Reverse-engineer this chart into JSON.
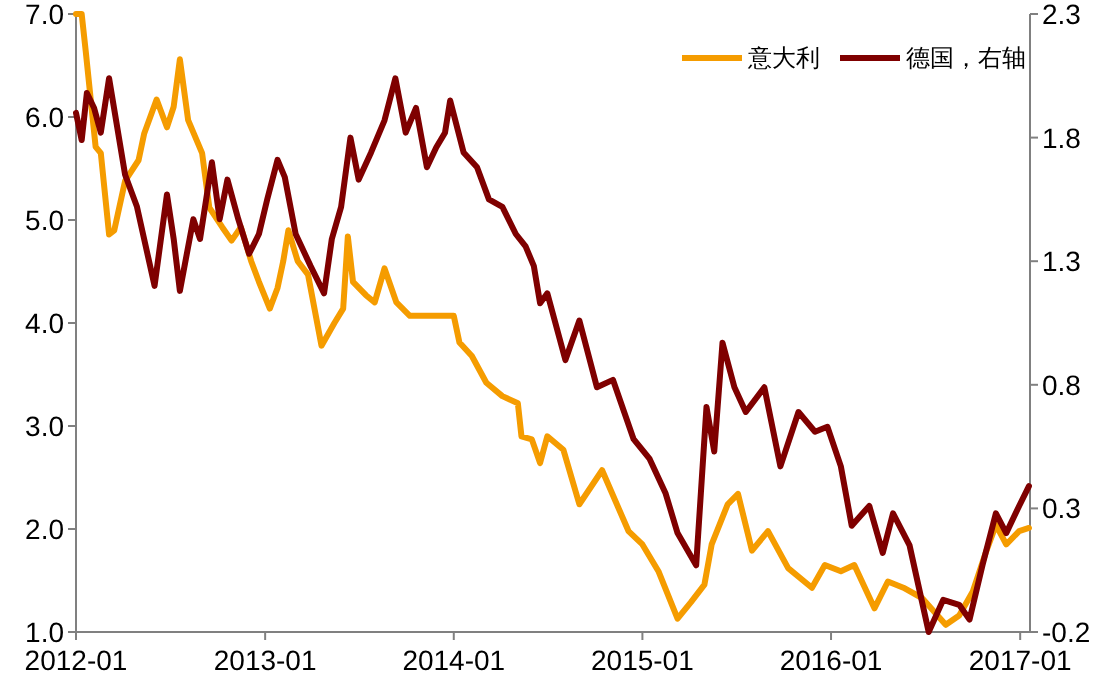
{
  "chart_data": {
    "type": "line",
    "legend": "top right",
    "grid": false,
    "xlim": [
      "2012-01-01",
      "2017-01-20"
    ],
    "xticks": [
      "2012-01",
      "2013-01",
      "2014-01",
      "2015-01",
      "2016-01",
      "2017-01"
    ],
    "ylim": [
      1,
      7
    ],
    "yticks": [
      {
        "value": 1,
        "label": "1.0"
      },
      {
        "value": 2,
        "label": "2.0"
      },
      {
        "value": 3,
        "label": "3.0"
      },
      {
        "value": 4,
        "label": "4.0"
      },
      {
        "value": 5,
        "label": "5.0"
      },
      {
        "value": 6,
        "label": "6.0"
      },
      {
        "value": 7,
        "label": "7.0"
      }
    ],
    "y2lim": [
      -0.2,
      2.3
    ],
    "y2ticks": [
      -0.2,
      0.3,
      0.8,
      1.3,
      1.8,
      2.3
    ],
    "series": [
      {
        "name": "意大利",
        "color": "#f59c00",
        "axis": "y",
        "x": [
          "2012-01-01",
          "2012-01-12",
          "2012-01-20",
          "2012-02-08",
          "2012-02-18",
          "2012-03-05",
          "2012-03-15",
          "2012-04-05",
          "2012-05-01",
          "2012-05-12",
          "2012-06-05",
          "2012-06-25",
          "2012-07-08",
          "2012-07-20",
          "2012-08-05",
          "2012-09-01",
          "2012-09-15",
          "2012-10-10",
          "2012-10-28",
          "2012-11-15",
          "2012-12-05",
          "2012-12-20",
          "2013-01-10",
          "2013-01-25",
          "2013-02-05",
          "2013-02-15",
          "2013-03-05",
          "2013-03-25",
          "2013-04-20",
          "2013-05-15",
          "2013-06-01",
          "2013-06-10",
          "2013-06-20",
          "2013-07-15",
          "2013-08-01",
          "2013-08-20",
          "2013-09-12",
          "2013-10-08",
          "2013-11-01",
          "2013-12-10",
          "2014-01-01",
          "2014-01-12",
          "2014-02-05",
          "2014-03-05",
          "2014-04-05",
          "2014-05-05",
          "2014-05-12",
          "2014-06-01",
          "2014-06-17",
          "2014-07-01",
          "2014-08-01",
          "2014-09-01",
          "2014-10-15",
          "2014-12-05",
          "2015-01-01",
          "2015-02-01",
          "2015-03-10",
          "2015-04-05",
          "2015-05-01",
          "2015-05-15",
          "2015-06-15",
          "2015-07-05",
          "2015-08-01",
          "2015-09-01",
          "2015-10-10",
          "2015-11-25",
          "2015-12-20",
          "2016-01-20",
          "2016-02-15",
          "2016-03-25",
          "2016-04-20",
          "2016-05-20",
          "2016-06-25",
          "2016-08-10",
          "2016-09-05",
          "2016-10-01",
          "2016-10-27",
          "2016-11-15",
          "2016-12-05",
          "2016-12-30",
          "2017-01-18"
        ],
        "values": [
          7.0,
          7.0,
          6.63,
          5.71,
          5.65,
          4.86,
          4.9,
          5.38,
          5.58,
          5.84,
          6.17,
          5.9,
          6.1,
          6.56,
          5.97,
          5.65,
          5.12,
          4.93,
          4.8,
          4.93,
          4.6,
          4.4,
          4.14,
          4.34,
          4.6,
          4.9,
          4.6,
          4.47,
          3.78,
          4.0,
          4.14,
          4.84,
          4.4,
          4.27,
          4.2,
          4.53,
          4.2,
          4.07,
          4.07,
          4.07,
          4.07,
          3.81,
          3.68,
          3.42,
          3.29,
          3.22,
          2.9,
          2.87,
          2.64,
          2.9,
          2.77,
          2.24,
          2.57,
          1.98,
          1.85,
          1.59,
          1.13,
          1.29,
          1.46,
          1.85,
          2.24,
          2.34,
          1.79,
          1.98,
          1.62,
          1.43,
          1.65,
          1.59,
          1.65,
          1.23,
          1.49,
          1.43,
          1.33,
          1.07,
          1.16,
          1.39,
          1.78,
          2.04,
          1.85,
          1.98,
          2.01
        ]
      },
      {
        "name": "德国，右轴",
        "color": "#7f0000",
        "axis": "y2",
        "x": [
          "2012-01-01",
          "2012-01-12",
          "2012-01-22",
          "2012-02-05",
          "2012-02-18",
          "2012-03-05",
          "2012-04-05",
          "2012-04-28",
          "2012-06-01",
          "2012-06-25",
          "2012-07-08",
          "2012-07-20",
          "2012-08-15",
          "2012-08-28",
          "2012-09-20",
          "2012-10-05",
          "2012-10-20",
          "2012-11-10",
          "2012-12-01",
          "2012-12-20",
          "2013-01-05",
          "2013-01-25",
          "2013-02-08",
          "2013-03-01",
          "2013-03-30",
          "2013-04-25",
          "2013-05-10",
          "2013-05-28",
          "2013-06-15",
          "2013-07-01",
          "2013-07-25",
          "2013-08-20",
          "2013-09-10",
          "2013-09-30",
          "2013-10-20",
          "2013-11-10",
          "2013-11-28",
          "2013-12-15",
          "2013-12-25",
          "2014-01-20",
          "2014-02-15",
          "2014-03-10",
          "2014-04-05",
          "2014-05-01",
          "2014-05-20",
          "2014-06-05",
          "2014-06-17",
          "2014-07-01",
          "2014-08-05",
          "2014-09-01",
          "2014-10-05",
          "2014-11-05",
          "2014-12-15",
          "2015-01-15",
          "2015-02-15",
          "2015-03-10",
          "2015-04-15",
          "2015-05-05",
          "2015-05-20",
          "2015-06-05",
          "2015-06-28",
          "2015-07-20",
          "2015-08-25",
          "2015-09-25",
          "2015-10-30",
          "2015-12-01",
          "2015-12-25",
          "2016-01-20",
          "2016-02-10",
          "2016-03-15",
          "2016-04-10",
          "2016-04-30",
          "2016-06-01",
          "2016-07-08",
          "2016-08-05",
          "2016-09-05",
          "2016-09-25",
          "2016-10-20",
          "2016-11-15",
          "2016-12-05",
          "2016-12-30",
          "2017-01-18"
        ],
        "values": [
          1.9,
          1.79,
          1.98,
          1.92,
          1.82,
          2.04,
          1.65,
          1.52,
          1.2,
          1.57,
          1.39,
          1.18,
          1.47,
          1.39,
          1.7,
          1.47,
          1.63,
          1.47,
          1.33,
          1.41,
          1.55,
          1.71,
          1.64,
          1.41,
          1.28,
          1.17,
          1.39,
          1.52,
          1.8,
          1.63,
          1.74,
          1.87,
          2.04,
          1.82,
          1.92,
          1.68,
          1.76,
          1.82,
          1.95,
          1.74,
          1.68,
          1.55,
          1.52,
          1.41,
          1.36,
          1.28,
          1.13,
          1.17,
          0.9,
          1.06,
          0.79,
          0.82,
          0.58,
          0.5,
          0.36,
          0.2,
          0.07,
          0.71,
          0.53,
          0.97,
          0.79,
          0.69,
          0.79,
          0.47,
          0.69,
          0.61,
          0.63,
          0.47,
          0.23,
          0.31,
          0.12,
          0.28,
          0.15,
          -0.2,
          -0.07,
          -0.09,
          -0.15,
          0.07,
          0.28,
          0.2,
          0.31,
          0.39
        ]
      }
    ]
  }
}
